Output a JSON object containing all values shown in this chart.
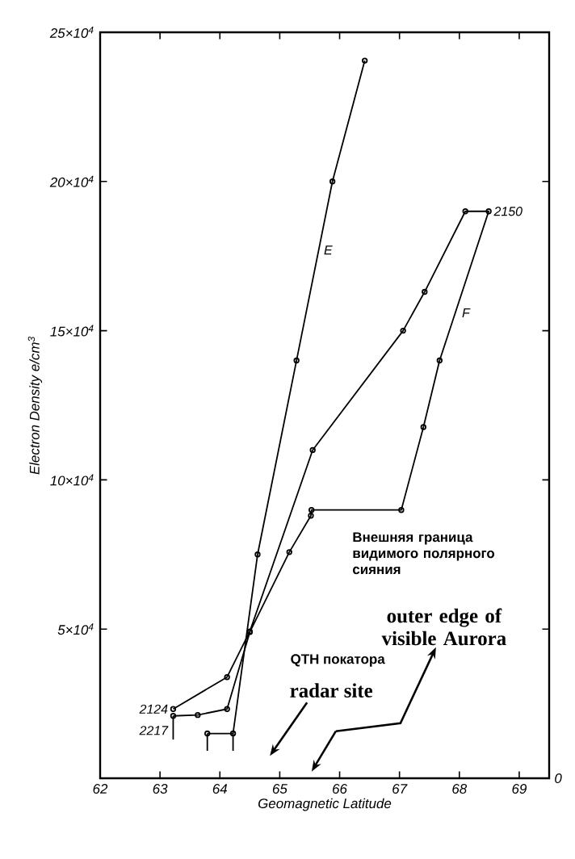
{
  "chart_data": {
    "type": "line",
    "xlabel": "Geomagnetic Latitude",
    "ylabel": "Electron Density e/cm$^{3}$",
    "xlim": [
      62,
      69.5
    ],
    "xticks": [
      62,
      63,
      64,
      65,
      66,
      67,
      68,
      69
    ],
    "ylim": [
      0,
      250000
    ],
    "yticks": [
      {
        "value": 50000,
        "label": "5×10$^{4}$"
      },
      {
        "value": 100000,
        "label": "10×10$^{4}$"
      },
      {
        "value": 150000,
        "label": "15×10$^{4}$"
      },
      {
        "value": 200000,
        "label": "20×10$^{4}$"
      },
      {
        "value": 250000,
        "label": "25×10$^{4}$"
      }
    ],
    "marker": "circle",
    "line_style": "solid",
    "grid": false,
    "series": [
      {
        "color": "#000000",
        "x": [
          66.42,
          65.88,
          65.28,
          64.63,
          64.22,
          63.79
        ],
        "values": [
          240500,
          200000,
          140000,
          75000,
          15000,
          15000
        ]
      },
      {
        "color": "#000000",
        "x": [
          63.22,
          64.12,
          64.5,
          65.55,
          67.06,
          67.42,
          68.1,
          68.49,
          67.67,
          67.4,
          67.03,
          65.53,
          65.52,
          65.16,
          64.5,
          64.12,
          63.63,
          63.22
        ],
        "values": [
          23200,
          33900,
          49200,
          110000,
          150000,
          163000,
          190000,
          190000,
          140000,
          117700,
          89900,
          89900,
          88000,
          75800,
          49000,
          23200,
          21200,
          20900
        ]
      },
      {
        "color": "#000000",
        "marker": "none",
        "x": [
          63.22,
          63.22,
          63.5,
          63.79,
          63.79,
          64.0,
          64.22,
          64.22
        ],
        "values": [
          20900,
          13000,
          null,
          15000,
          9200,
          null,
          15000,
          9200
        ]
      }
    ],
    "annotations": [
      {
        "text": "E",
        "x": 65.65,
        "y": 177000
      },
      {
        "text": "F",
        "x": 67.93,
        "y": 156000
      },
      {
        "text": "2124",
        "x": 63.22,
        "y": 23200
      },
      {
        "text": "2217",
        "x": 63.22,
        "y": 20900
      },
      {
        "text": "2150",
        "x": 68.49,
        "y": 190000
      },
      "Внешняя граница видимого полярного сияния",
      "outer edge of visible Aurora",
      "QTH покатора",
      "radar site",
      "0"
    ]
  }
}
